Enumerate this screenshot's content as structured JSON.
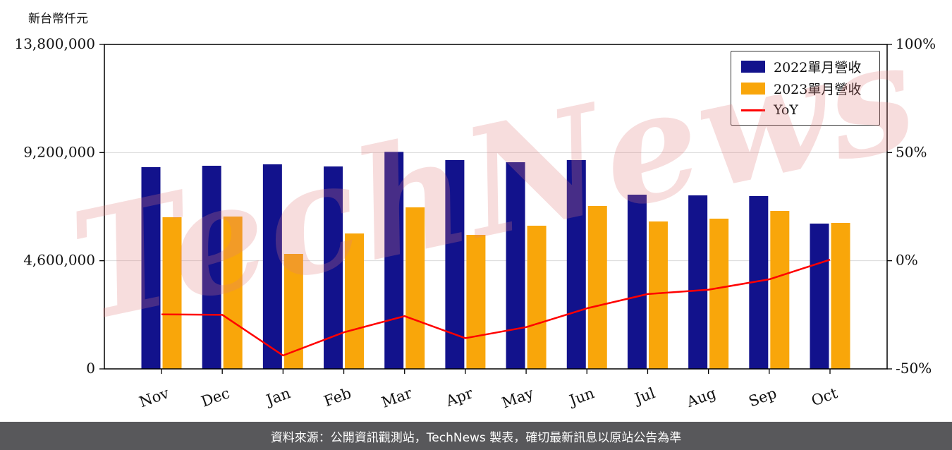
{
  "unit_label": "新台幣仟元",
  "watermark": "TechNews",
  "footer": {
    "text": "資料來源：公開資訊觀測站，TechNews 製表，確切最新訊息以原站公告為準"
  },
  "legend": [
    {
      "label": "2022單月營收",
      "type": "bar",
      "color": "#12128c"
    },
    {
      "label": "2023單月營收",
      "type": "bar",
      "color": "#f9a60a"
    },
    {
      "label": "YoY",
      "type": "line",
      "color": "#ff0000"
    }
  ],
  "chart_data": {
    "type": "bar",
    "title": "",
    "categories": [
      "Nov",
      "Dec",
      "Jan",
      "Feb",
      "Mar",
      "Apr",
      "May",
      "Jun",
      "Jul",
      "Aug",
      "Sep",
      "Oct"
    ],
    "series": [
      {
        "name": "2022單月營收",
        "type": "bar",
        "axis": "left",
        "color": "#12128c",
        "values": [
          8580000,
          8640000,
          8700000,
          8610000,
          9230000,
          8880000,
          8790000,
          8880000,
          7410000,
          7380000,
          7350000,
          6180000
        ]
      },
      {
        "name": "2023單月營收",
        "type": "bar",
        "axis": "left",
        "color": "#f9a60a",
        "values": [
          6450000,
          6480000,
          4890000,
          5760000,
          6870000,
          5700000,
          6090000,
          6930000,
          6270000,
          6390000,
          6720000,
          6210000
        ]
      },
      {
        "name": "YoY",
        "type": "line",
        "axis": "right",
        "color": "#ff0000",
        "values": [
          -24.8,
          -25.0,
          -43.8,
          -33.1,
          -25.6,
          -35.8,
          -30.7,
          -22.0,
          -15.4,
          -13.4,
          -8.6,
          0.5
        ]
      }
    ],
    "left_axis": {
      "label": "新台幣仟元",
      "min": 0,
      "max": 13800000,
      "ticks": [
        {
          "value": 13800000,
          "label": "13,800,000"
        },
        {
          "value": 9200000,
          "label": "9,200,000"
        },
        {
          "value": 4600000,
          "label": "4,600,000"
        },
        {
          "value": 0,
          "label": "0"
        }
      ]
    },
    "right_axis": {
      "label": "",
      "min": -50,
      "max": 100,
      "ticks": [
        {
          "value": 100,
          "label": "100%"
        },
        {
          "value": 50,
          "label": "50%"
        },
        {
          "value": 0,
          "label": "0%"
        },
        {
          "value": -50,
          "label": "-50%"
        }
      ]
    },
    "grid": true,
    "legend_position": "top-right"
  }
}
